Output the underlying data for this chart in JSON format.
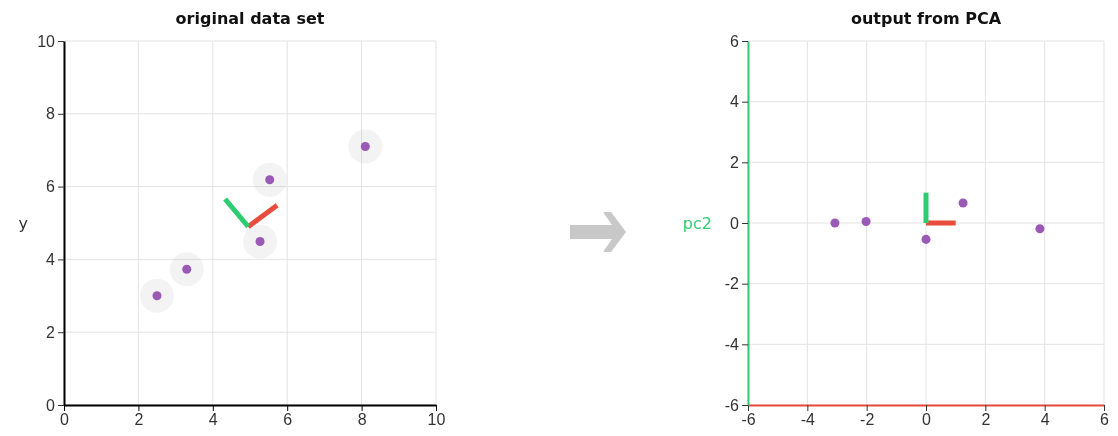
{
  "chart_data": [
    {
      "type": "scatter",
      "title": "original data set",
      "ylabel": "y",
      "xlim": [
        0,
        10
      ],
      "ylim": [
        0,
        10
      ],
      "xticks": [
        0,
        2,
        4,
        6,
        8,
        10
      ],
      "yticks": [
        0,
        2,
        4,
        6,
        8,
        10
      ],
      "grid": true,
      "marker": "circle",
      "series": [
        {
          "color": "#9b59b6",
          "x": [
            2.5,
            3.3,
            5.27,
            5.53,
            8.1
          ],
          "values": [
            3.0,
            3.73,
            4.49,
            6.19,
            7.1
          ]
        },
        {
          "type": "line",
          "color": "#e74c3c",
          "x": [
            4.95,
            5.73
          ],
          "values": [
            4.9,
            5.49
          ],
          "marker": "none"
        },
        {
          "type": "line",
          "color": "#2ecc71",
          "x": [
            4.95,
            4.33
          ],
          "values": [
            4.9,
            5.66
          ],
          "marker": "none"
        }
      ]
    },
    {
      "type": "scatter",
      "title": "output from PCA",
      "ylabel": "pc2",
      "xlim": [
        -6,
        6
      ],
      "ylim": [
        -6,
        6
      ],
      "xticks": [
        -6,
        -4,
        -2,
        0,
        2,
        4,
        6
      ],
      "yticks": [
        -6,
        -4,
        -2,
        0,
        2,
        4,
        6
      ],
      "grid": true,
      "marker": "circle",
      "series": [
        {
          "color": "#9b59b6",
          "x": [
            -3.07,
            -2.02,
            0,
            1.25,
            3.84
          ],
          "values": [
            0,
            0.05,
            -0.54,
            0.66,
            -0.19
          ]
        },
        {
          "type": "line",
          "color": "#e74c3c",
          "x": [
            0,
            1
          ],
          "values": [
            0,
            0
          ],
          "marker": "none"
        },
        {
          "type": "line",
          "color": "#2ecc71",
          "x": [
            0,
            0
          ],
          "values": [
            0,
            1
          ],
          "marker": "none"
        }
      ]
    }
  ]
}
